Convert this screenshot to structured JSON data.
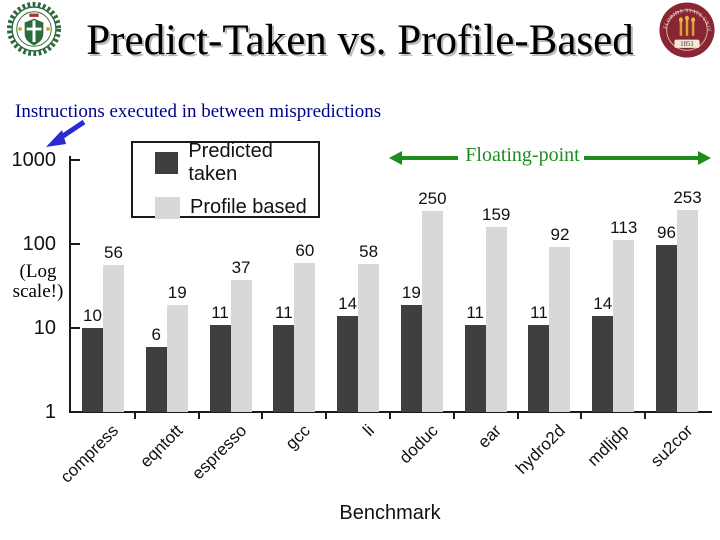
{
  "slide": {
    "title": "Predict-Taken vs. Profile-Based",
    "subtitle": "Instructions executed in between mispredictions",
    "floating_point_label": "Floating-point",
    "log_scale_note": "(Log\nscale!)"
  },
  "legend": {
    "items": [
      {
        "label": "Predicted taken",
        "color": "#3f3f3f"
      },
      {
        "label": "Profile based",
        "color": "#d8d8d8"
      }
    ]
  },
  "chart_data": {
    "type": "bar",
    "scale": "log",
    "title": "",
    "xlabel": "Benchmark",
    "ylabel": "",
    "ylim": [
      1,
      1000
    ],
    "yticks": [
      1,
      10,
      100,
      1000
    ],
    "grid": false,
    "legend_position": "top-left",
    "categories": [
      "compress",
      "eqntott",
      "espresso",
      "gcc",
      "li",
      "doduc",
      "ear",
      "hydro2d",
      "mdljdp",
      "su2cor"
    ],
    "series": [
      {
        "name": "Predicted taken",
        "color": "#3f3f3f",
        "values": [
          10,
          6,
          11,
          11,
          14,
          19,
          11,
          11,
          14,
          96
        ]
      },
      {
        "name": "Profile based",
        "color": "#d8d8d8",
        "values": [
          56,
          19,
          37,
          60,
          58,
          250,
          159,
          92,
          113,
          253
        ]
      }
    ],
    "annotations": {
      "floating_point_span": [
        "doduc",
        "ear",
        "hydro2d",
        "mdljdp",
        "su2cor"
      ]
    }
  },
  "logos": {
    "right_seal_text": "FLORIDA STATE UNIVERSITY",
    "right_seal_year": "1851"
  },
  "colors": {
    "bar_dark": "#3f3f3f",
    "bar_light": "#d8d8d8",
    "subtitle_blue": "#00008b",
    "arrow_blue": "#2a2ad0",
    "floating_point_green": "#1f8c1f",
    "seal_garnet": "#8a2533",
    "seal_green": "#2d6a3d",
    "seal_gold": "#d9a33a"
  }
}
